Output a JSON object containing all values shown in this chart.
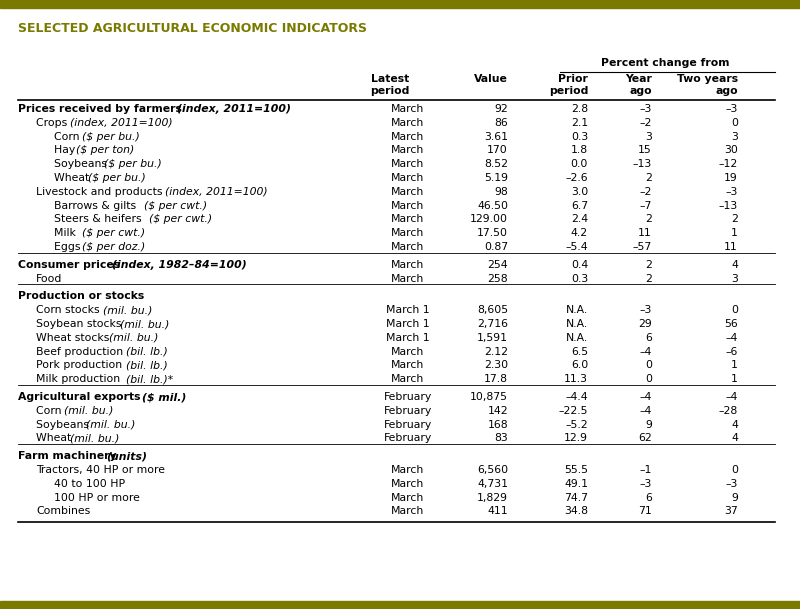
{
  "title": "SELECTED AGRICULTURAL ECONOMIC INDICATORS",
  "title_color": "#7a7a00",
  "percent_change_header": "Percent change from",
  "rows": [
    {
      "label": "Prices received by farmers ",
      "label2": "(index, 2011=100)",
      "bold": true,
      "italic2": true,
      "period": "March",
      "value": "92",
      "prior": "2.8",
      "year": "–3",
      "two": "–3",
      "indent": 0,
      "section_break_before": false
    },
    {
      "label": "Crops ",
      "label2": "(index, 2011=100)",
      "bold": false,
      "italic2": true,
      "period": "March",
      "value": "86",
      "prior": "2.1",
      "year": "–2",
      "two": "0",
      "indent": 1,
      "section_break_before": false
    },
    {
      "label": "Corn ",
      "label2": "($ per bu.)",
      "bold": false,
      "italic2": true,
      "period": "March",
      "value": "3.61",
      "prior": "0.3",
      "year": "3",
      "two": "3",
      "indent": 2,
      "section_break_before": false
    },
    {
      "label": "Hay ",
      "label2": "($ per ton)",
      "bold": false,
      "italic2": true,
      "period": "March",
      "value": "170",
      "prior": "1.8",
      "year": "15",
      "two": "30",
      "indent": 2,
      "section_break_before": false
    },
    {
      "label": "Soybeans ",
      "label2": "($ per bu.)",
      "bold": false,
      "italic2": true,
      "period": "March",
      "value": "8.52",
      "prior": "0.0",
      "year": "–13",
      "two": "–12",
      "indent": 2,
      "section_break_before": false
    },
    {
      "label": "Wheat ",
      "label2": "($ per bu.)",
      "bold": false,
      "italic2": true,
      "period": "March",
      "value": "5.19",
      "prior": "–2.6",
      "year": "2",
      "two": "19",
      "indent": 2,
      "section_break_before": false
    },
    {
      "label": "Livestock and products ",
      "label2": "(index, 2011=100)",
      "bold": false,
      "italic2": true,
      "period": "March",
      "value": "98",
      "prior": "3.0",
      "year": "–2",
      "two": "–3",
      "indent": 1,
      "section_break_before": false
    },
    {
      "label": "Barrows & gilts ",
      "label2": "($ per cwt.)",
      "bold": false,
      "italic2": true,
      "period": "March",
      "value": "46.50",
      "prior": "6.7",
      "year": "–7",
      "two": "–13",
      "indent": 2,
      "section_break_before": false
    },
    {
      "label": "Steers & heifers ",
      "label2": "($ per cwt.)",
      "bold": false,
      "italic2": true,
      "period": "March",
      "value": "129.00",
      "prior": "2.4",
      "year": "2",
      "two": "2",
      "indent": 2,
      "section_break_before": false
    },
    {
      "label": "Milk ",
      "label2": "($ per cwt.)",
      "bold": false,
      "italic2": true,
      "period": "March",
      "value": "17.50",
      "prior": "4.2",
      "year": "11",
      "two": "1",
      "indent": 2,
      "section_break_before": false
    },
    {
      "label": "Eggs ",
      "label2": "($ per doz.)",
      "bold": false,
      "italic2": true,
      "period": "March",
      "value": "0.87",
      "prior": "–5.4",
      "year": "–57",
      "two": "11",
      "indent": 2,
      "section_break_before": false
    },
    {
      "label": "Consumer prices ",
      "label2": "(index, 1982–84=100)",
      "bold": true,
      "italic2": true,
      "period": "March",
      "value": "254",
      "prior": "0.4",
      "year": "2",
      "two": "4",
      "indent": 0,
      "section_break_before": true
    },
    {
      "label": "Food",
      "label2": "",
      "bold": false,
      "italic2": false,
      "period": "March",
      "value": "258",
      "prior": "0.3",
      "year": "2",
      "two": "3",
      "indent": 1,
      "section_break_before": false
    },
    {
      "label": "Production or stocks",
      "label2": "",
      "bold": true,
      "italic2": false,
      "period": "",
      "value": "",
      "prior": "",
      "year": "",
      "two": "",
      "indent": 0,
      "section_break_before": true
    },
    {
      "label": "Corn stocks ",
      "label2": "(mil. bu.)",
      "bold": false,
      "italic2": true,
      "period": "March 1",
      "value": "8,605",
      "prior": "N.A.",
      "year": "–3",
      "two": "0",
      "indent": 1,
      "section_break_before": false
    },
    {
      "label": "Soybean stocks ",
      "label2": "(mil. bu.)",
      "bold": false,
      "italic2": true,
      "period": "March 1",
      "value": "2,716",
      "prior": "N.A.",
      "year": "29",
      "two": "56",
      "indent": 1,
      "section_break_before": false
    },
    {
      "label": "Wheat stocks ",
      "label2": "(mil. bu.)",
      "bold": false,
      "italic2": true,
      "period": "March 1",
      "value": "1,591",
      "prior": "N.A.",
      "year": "6",
      "two": "–4",
      "indent": 1,
      "section_break_before": false
    },
    {
      "label": "Beef production ",
      "label2": "(bil. lb.)",
      "bold": false,
      "italic2": true,
      "period": "March",
      "value": "2.12",
      "prior": "6.5",
      "year": "–4",
      "two": "–6",
      "indent": 1,
      "section_break_before": false
    },
    {
      "label": "Pork production ",
      "label2": "(bil. lb.)",
      "bold": false,
      "italic2": true,
      "period": "March",
      "value": "2.30",
      "prior": "6.0",
      "year": "0",
      "two": "1",
      "indent": 1,
      "section_break_before": false
    },
    {
      "label": "Milk production ",
      "label2": "(bil. lb.)*",
      "bold": false,
      "italic2": true,
      "period": "March",
      "value": "17.8",
      "prior": "11.3",
      "year": "0",
      "two": "1",
      "indent": 1,
      "section_break_before": false
    },
    {
      "label": "Agricultural exports ",
      "label2": "($ mil.)",
      "bold": true,
      "italic2": true,
      "period": "February",
      "value": "10,875",
      "prior": "–4.4",
      "year": "–4",
      "two": "–4",
      "indent": 0,
      "section_break_before": true
    },
    {
      "label": "Corn ",
      "label2": "(mil. bu.)",
      "bold": false,
      "italic2": true,
      "period": "February",
      "value": "142",
      "prior": "–22.5",
      "year": "–4",
      "two": "–28",
      "indent": 1,
      "section_break_before": false
    },
    {
      "label": "Soybeans ",
      "label2": "(mil. bu.)",
      "bold": false,
      "italic2": true,
      "period": "February",
      "value": "168",
      "prior": "–5.2",
      "year": "9",
      "two": "4",
      "indent": 1,
      "section_break_before": false
    },
    {
      "label": "Wheat ",
      "label2": "(mil. bu.)",
      "bold": false,
      "italic2": true,
      "period": "February",
      "value": "83",
      "prior": "12.9",
      "year": "62",
      "two": "4",
      "indent": 1,
      "section_break_before": false
    },
    {
      "label": "Farm machinery ",
      "label2": "(units)",
      "bold": true,
      "italic2": true,
      "period": "",
      "value": "",
      "prior": "",
      "year": "",
      "two": "",
      "indent": 0,
      "section_break_before": true
    },
    {
      "label": "Tractors, 40 HP or more",
      "label2": "",
      "bold": false,
      "italic2": false,
      "period": "March",
      "value": "6,560",
      "prior": "55.5",
      "year": "–1",
      "two": "0",
      "indent": 1,
      "section_break_before": false
    },
    {
      "label": "40 to 100 HP",
      "label2": "",
      "bold": false,
      "italic2": false,
      "period": "March",
      "value": "4,731",
      "prior": "49.1",
      "year": "–3",
      "two": "–3",
      "indent": 2,
      "section_break_before": false
    },
    {
      "label": "100 HP or more",
      "label2": "",
      "bold": false,
      "italic2": false,
      "period": "March",
      "value": "1,829",
      "prior": "74.7",
      "year": "6",
      "two": "9",
      "indent": 2,
      "section_break_before": false
    },
    {
      "label": "Combines",
      "label2": "",
      "bold": false,
      "italic2": false,
      "period": "March",
      "value": "411",
      "prior": "34.8",
      "year": "71",
      "two": "37",
      "indent": 1,
      "section_break_before": false
    }
  ],
  "bg_color": "#ffffff",
  "top_bar_color": "#7a7a00",
  "bottom_bar_color": "#7a7a00",
  "font_size": 7.8,
  "title_font_size": 9.0
}
